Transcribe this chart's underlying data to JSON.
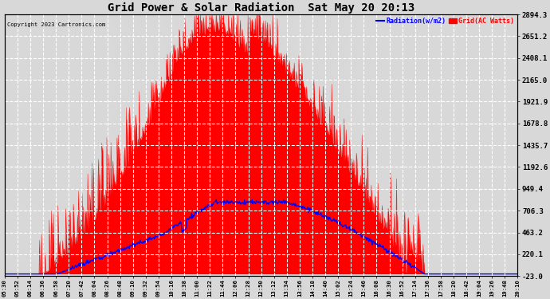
{
  "title": "Grid Power & Solar Radiation  Sat May 20 20:13",
  "copyright": "Copyright 2023 Cartronics.com",
  "legend_radiation": "Radiation(w/m2)",
  "legend_grid": "Grid(AC Watts)",
  "ylabel_right_ticks": [
    2894.3,
    2651.2,
    2408.1,
    2165.0,
    1921.9,
    1678.8,
    1435.7,
    1192.6,
    949.4,
    706.3,
    463.2,
    220.1,
    -23.0
  ],
  "ymin": -23.0,
  "ymax": 2894.3,
  "bg_color": "#d8d8d8",
  "plot_bg_color": "#d8d8d8",
  "grid_color": "#ffffff",
  "red_fill_color": "#ff0000",
  "blue_line_color": "#0000ff",
  "title_color": "#000000",
  "copyright_color": "#000000",
  "radiation_legend_color": "#0000ff",
  "grid_legend_color": "#ff0000",
  "x_tick_labels": [
    "05:30",
    "05:52",
    "06:14",
    "06:36",
    "06:58",
    "07:20",
    "07:42",
    "08:04",
    "08:26",
    "08:48",
    "09:10",
    "09:32",
    "09:54",
    "10:16",
    "10:38",
    "11:00",
    "11:22",
    "11:44",
    "12:06",
    "12:28",
    "12:50",
    "13:12",
    "13:34",
    "13:56",
    "14:18",
    "14:40",
    "15:02",
    "15:24",
    "15:46",
    "16:08",
    "16:30",
    "16:52",
    "17:14",
    "17:36",
    "17:58",
    "18:20",
    "18:42",
    "19:04",
    "19:26",
    "19:48",
    "20:10"
  ],
  "n_points": 1000
}
